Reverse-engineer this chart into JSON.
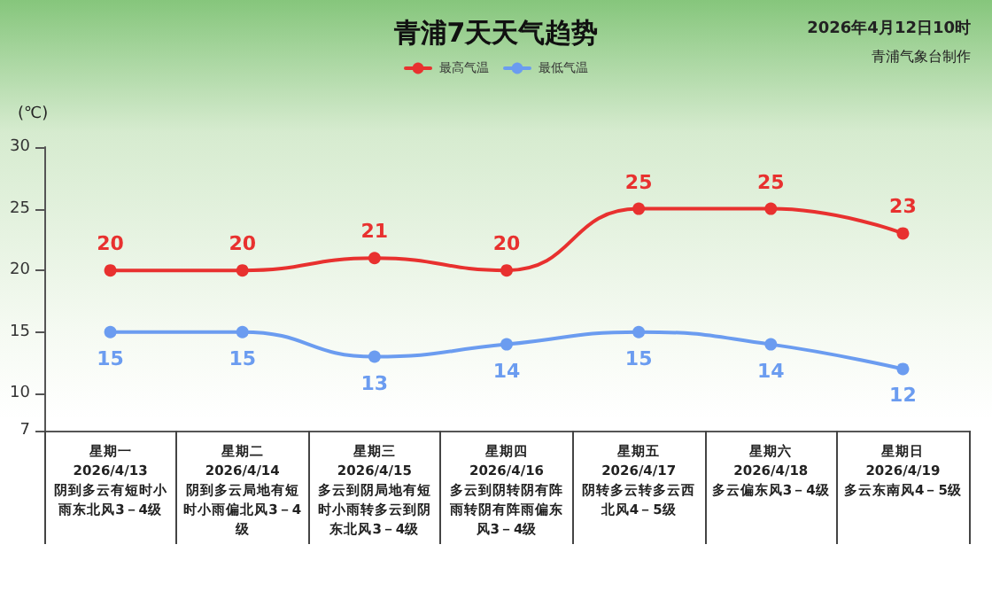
{
  "chart_data": {
    "type": "line",
    "title": "青浦7天天气趋势",
    "ylabel": "(℃)",
    "annotations": [
      "2026年4月12日10时",
      "青浦气象台制作"
    ],
    "categories": [
      "星期一\n2026/4/13\n阴到多云有短时小雨东北风3－4级",
      "星期二\n2026/4/14\n阴到多云局地有短时小雨偏北风3－4级",
      "星期三\n2026/4/15\n多云到阴局地有短时小雨转多云到阴东北风3－4级",
      "星期四\n2026/4/16\n多云到阴转阴有阵雨转阴有阵雨偏东风3－4级",
      "星期五\n2026/4/17\n阴转多云转多云西北风4－5级",
      "星期六\n2026/4/18\n多云偏东风3－4级",
      "星期日\n2026/4/19\n多云东南风4－5级"
    ],
    "series": [
      {
        "name": "最高气温",
        "color": "#e8312f",
        "values": [
          20,
          20,
          21,
          20,
          25,
          25,
          23
        ]
      },
      {
        "name": "最低气温",
        "color": "#6b9cf0",
        "values": [
          15,
          15,
          13,
          14,
          15,
          14,
          12
        ]
      }
    ],
    "ylim": [
      7,
      30
    ],
    "yticks": [
      7,
      10,
      15,
      20,
      25,
      30
    ],
    "grid": false,
    "legend": "top",
    "data_labels": true,
    "marker": "circle",
    "line_style": "solid"
  }
}
